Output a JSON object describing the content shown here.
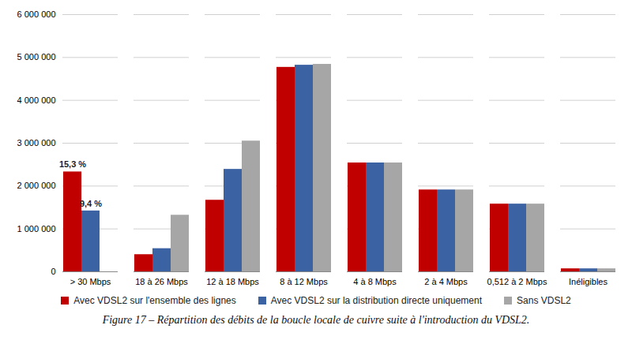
{
  "chart_data": {
    "type": "bar",
    "caption": "Figure 17 – Répartition des débits de la boucle locale de cuivre suite à l'introduction du VDSL2.",
    "categories": [
      "> 30 Mbps",
      "18 à 26 Mbps",
      "12 à 18 Mbps",
      "8 à 12 Mbps",
      "4 à 8 Mbps",
      "2 à 4 Mbps",
      "0,512 à 2 Mbps",
      "Inéligibles"
    ],
    "series": [
      {
        "name": "Avec VDSL2 sur l'ensemble des lignes",
        "color": "#c00000",
        "values": [
          2330000,
          400000,
          1670000,
          4770000,
          2540000,
          1910000,
          1580000,
          70000
        ]
      },
      {
        "name": "Avec VDSL2 sur la distribution directe uniquement",
        "color": "#3b62a3",
        "values": [
          1420000,
          540000,
          2390000,
          4820000,
          2540000,
          1910000,
          1580000,
          70000
        ]
      },
      {
        "name": "Sans VDSL2",
        "color": "#a6a6a6",
        "values": [
          0,
          1320000,
          3050000,
          4840000,
          2540000,
          1910000,
          1580000,
          70000
        ]
      }
    ],
    "annotations": [
      {
        "category": "> 30 Mbps",
        "series": "Avec VDSL2 sur l'ensemble des lignes",
        "text": "15,3 %"
      },
      {
        "category": "> 30 Mbps",
        "series": "Avec VDSL2 sur la distribution directe uniquement",
        "text": "9,4 %"
      }
    ],
    "ylim": [
      0,
      6000000
    ],
    "yticks": [
      0,
      {
        "value": 1000000,
        "label": "1 000 000"
      },
      {
        "value": 2000000,
        "label": "2 000 000"
      },
      {
        "value": 3000000,
        "label": "3 000 000"
      },
      {
        "value": 4000000,
        "label": "4 000 000"
      },
      {
        "value": 5000000,
        "label": "5 000 000"
      },
      {
        "value": 6000000,
        "label": "6 000 000"
      }
    ],
    "grid": true,
    "legend": "bottom"
  }
}
